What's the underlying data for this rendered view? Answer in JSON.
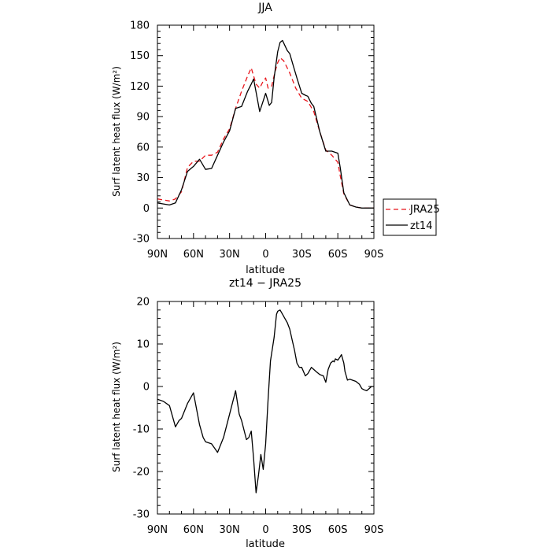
{
  "chart_data": [
    {
      "type": "line",
      "title": "JJA",
      "xlabel": "latitude",
      "ylabel": "Surf latent heat flux (W/m²)",
      "xlim": [
        90,
        -90
      ],
      "ylim": [
        -30,
        180
      ],
      "x_ticks": [
        90,
        60,
        30,
        0,
        -30,
        -60,
        -90
      ],
      "x_tick_labels": [
        "90N",
        "60N",
        "30N",
        "0",
        "30S",
        "60S",
        "90S"
      ],
      "y_ticks": [
        -30,
        0,
        30,
        60,
        90,
        120,
        150,
        180
      ],
      "y_tick_labels": [
        "-30",
        "0",
        "30",
        "60",
        "90",
        "120",
        "150",
        "180"
      ],
      "legend": {
        "placement": "right",
        "entries": [
          "JRA25",
          "zt14"
        ]
      },
      "series": [
        {
          "name": "JRA25",
          "color": "#e8141a",
          "dash": "dashed",
          "x": [
            90,
            85,
            80,
            75,
            70,
            65,
            60,
            55,
            50,
            45,
            40,
            35,
            30,
            25,
            20,
            15,
            12,
            10,
            8,
            5,
            2,
            0,
            -2,
            -5,
            -8,
            -10,
            -12,
            -15,
            -20,
            -25,
            -30,
            -35,
            -40,
            -45,
            -50,
            -55,
            -60,
            -62,
            -65,
            -70,
            -75,
            -80,
            -85,
            -90
          ],
          "values": [
            9,
            8,
            7,
            9,
            16,
            40,
            46,
            46,
            52,
            52,
            55,
            68,
            78,
            98,
            115,
            130,
            138,
            130,
            122,
            118,
            125,
            128,
            118,
            120,
            135,
            143,
            148,
            145,
            133,
            118,
            108,
            105,
            95,
            75,
            57,
            52,
            45,
            32,
            14,
            3,
            1,
            0,
            0,
            0
          ]
        },
        {
          "name": "zt14",
          "color": "#000000",
          "dash": "solid",
          "x": [
            90,
            85,
            80,
            75,
            70,
            65,
            60,
            55,
            50,
            45,
            40,
            35,
            30,
            25,
            20,
            15,
            12,
            10,
            7,
            5,
            3,
            0,
            -3,
            -5,
            -7,
            -10,
            -12,
            -14,
            -16,
            -18,
            -20,
            -23,
            -26,
            -30,
            -33,
            -35,
            -38,
            -40,
            -45,
            -50,
            -55,
            -60,
            -62,
            -65,
            -70,
            -75,
            -80,
            -85,
            -90
          ],
          "values": [
            5,
            4,
            3,
            5,
            18,
            36,
            41,
            48,
            38,
            39,
            52,
            65,
            76,
            98,
            100,
            115,
            122,
            127,
            108,
            95,
            102,
            113,
            101,
            104,
            128,
            154,
            163,
            165,
            160,
            155,
            152,
            140,
            128,
            113,
            111,
            110,
            103,
            100,
            75,
            56,
            56,
            54,
            40,
            15,
            3,
            1,
            0,
            0,
            0
          ]
        }
      ]
    },
    {
      "type": "line",
      "title": "zt14 − JRA25",
      "xlabel": "latitude",
      "ylabel": "Surf latent heat flux (W/m²)",
      "xlim": [
        90,
        -90
      ],
      "ylim": [
        -30,
        20
      ],
      "x_ticks": [
        90,
        60,
        30,
        0,
        -30,
        -60,
        -90
      ],
      "x_tick_labels": [
        "90N",
        "60N",
        "30N",
        "0",
        "30S",
        "60S",
        "90S"
      ],
      "y_ticks": [
        -30,
        -20,
        -10,
        0,
        10,
        20
      ],
      "y_tick_labels": [
        "-30",
        "-20",
        "-10",
        "0",
        "10",
        "20"
      ],
      "series": [
        {
          "color": "#000000",
          "dash": "solid",
          "x": [
            90,
            85,
            80,
            75,
            72,
            70,
            65,
            60,
            55,
            52,
            50,
            45,
            40,
            35,
            30,
            25,
            22,
            20,
            16,
            14,
            12,
            10,
            8,
            6,
            4,
            2,
            0,
            -2,
            -4,
            -7,
            -9,
            -10,
            -12,
            -14,
            -16,
            -18,
            -20,
            -22,
            -24,
            -26,
            -28,
            -30,
            -33,
            -35,
            -38,
            -40,
            -42,
            -45,
            -48,
            -50,
            -52,
            -54,
            -56,
            -57,
            -58,
            -60,
            -62,
            -63,
            -64,
            -65,
            -66,
            -67,
            -68,
            -70,
            -72,
            -75,
            -78,
            -80,
            -82,
            -84,
            -86,
            -88,
            -90
          ],
          "values": [
            -3,
            -3.5,
            -4.5,
            -9.5,
            -8,
            -7.5,
            -4,
            -1.5,
            -9,
            -12,
            -13,
            -13.5,
            -15.5,
            -12,
            -6.5,
            -1,
            -6.5,
            -8,
            -12.5,
            -12,
            -10.5,
            -17,
            -25,
            -21,
            -16,
            -19.5,
            -13.5,
            -3,
            6,
            11.5,
            17,
            17.7,
            18,
            17,
            16,
            15,
            13.5,
            11,
            8.5,
            5.5,
            4.5,
            4.5,
            2.5,
            3,
            4.5,
            4,
            3.5,
            2.8,
            2.5,
            1,
            4,
            5.5,
            6,
            5.8,
            6.5,
            6.2,
            7,
            7.5,
            6.5,
            5.5,
            3.5,
            2.5,
            1.5,
            1.7,
            1.5,
            1.2,
            0.5,
            -0.5,
            -0.8,
            -1,
            -0.5,
            0,
            0
          ]
        }
      ]
    }
  ]
}
